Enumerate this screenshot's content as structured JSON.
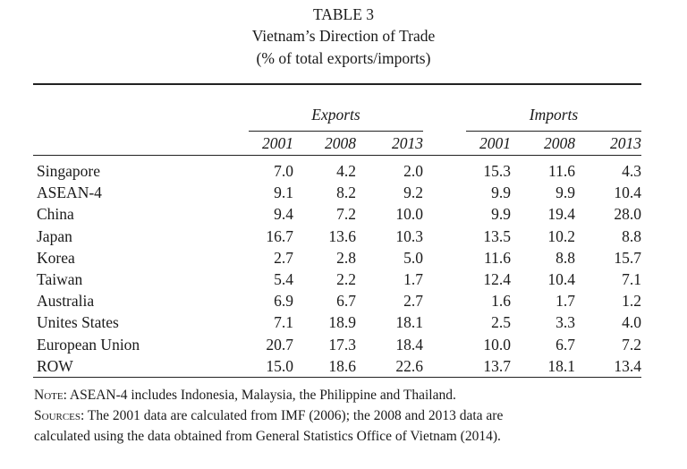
{
  "table": {
    "number": "TABLE 3",
    "title": "Vietnam’s Direction of Trade",
    "subtitle": "(% of total exports/imports)",
    "groups": [
      "Exports",
      "Imports"
    ],
    "years": [
      "2001",
      "2008",
      "2013",
      "2001",
      "2008",
      "2013"
    ],
    "rows": [
      {
        "name": "Singapore",
        "values": [
          "7.0",
          "4.2",
          "2.0",
          "15.3",
          "11.6",
          "4.3"
        ]
      },
      {
        "name": "ASEAN-4",
        "values": [
          "9.1",
          "8.2",
          "9.2",
          "9.9",
          "9.9",
          "10.4"
        ]
      },
      {
        "name": "China",
        "values": [
          "9.4",
          "7.2",
          "10.0",
          "9.9",
          "19.4",
          "28.0"
        ]
      },
      {
        "name": "Japan",
        "values": [
          "16.7",
          "13.6",
          "10.3",
          "13.5",
          "10.2",
          "8.8"
        ]
      },
      {
        "name": "Korea",
        "values": [
          "2.7",
          "2.8",
          "5.0",
          "11.6",
          "8.8",
          "15.7"
        ]
      },
      {
        "name": "Taiwan",
        "values": [
          "5.4",
          "2.2",
          "1.7",
          "12.4",
          "10.4",
          "7.1"
        ]
      },
      {
        "name": "Australia",
        "values": [
          "6.9",
          "6.7",
          "2.7",
          "1.6",
          "1.7",
          "1.2"
        ]
      },
      {
        "name": "Unites States",
        "values": [
          "7.1",
          "18.9",
          "18.1",
          "2.5",
          "3.3",
          "4.0"
        ]
      },
      {
        "name": "European Union",
        "values": [
          "20.7",
          "17.3",
          "18.4",
          "10.0",
          "6.7",
          "7.2"
        ]
      },
      {
        "name": "ROW",
        "values": [
          "15.0",
          "18.6",
          "22.6",
          "13.7",
          "18.1",
          "13.4"
        ]
      }
    ]
  },
  "notes": {
    "note_label": "Note:",
    "note_text": " ASEAN-4 includes Indonesia, Malaysia, the Philippine and Thailand.",
    "sources_label": "Sources:",
    "sources_text_1": " The 2001 data are calculated from IMF (2006); the 2008 and 2013 data are",
    "sources_text_2": "calculated using the data obtained from General Statistics Office of Vietnam (2014)."
  }
}
